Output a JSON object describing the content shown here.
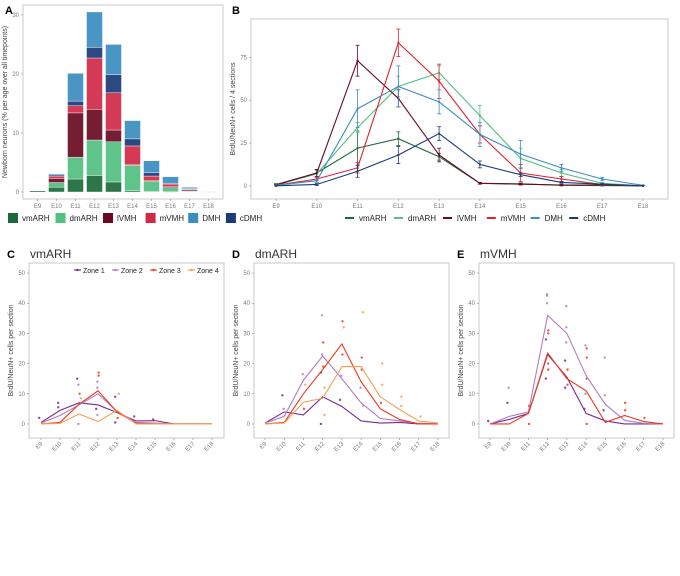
{
  "chart_data": [
    {
      "panel": "A",
      "type": "bar",
      "stacked": true,
      "categories": [
        "E9",
        "E10",
        "E11",
        "E12",
        "E13",
        "E14",
        "E15",
        "E16",
        "E17",
        "E18"
      ],
      "ylabel": "Newborn neurons (% per age over all timepoints)",
      "ylim": [
        0,
        31
      ],
      "yticks": [
        0,
        10,
        20,
        30
      ],
      "grid": false,
      "legend": "bottom",
      "series": [
        {
          "name": "vmARH",
          "color": "#1b6b3a",
          "values": [
            0.2,
            0.8,
            2.2,
            2.8,
            1.7,
            0.2,
            0.1,
            0.05,
            0.1,
            0
          ]
        },
        {
          "name": "dmARH",
          "color": "#52c07f",
          "values": [
            0,
            0.8,
            3.7,
            6.0,
            6.8,
            4.3,
            1.7,
            0.7,
            0.05,
            0
          ]
        },
        {
          "name": "lVMH",
          "color": "#6a0a22",
          "values": [
            0,
            0.7,
            7.5,
            5.2,
            2.0,
            0.1,
            0.1,
            0.2,
            0.2,
            0
          ]
        },
        {
          "name": "mVMH",
          "color": "#d12a47",
          "values": [
            0,
            0.4,
            1.2,
            8.7,
            6.3,
            3.2,
            0.8,
            0.4,
            0.1,
            0
          ]
        },
        {
          "name": "cDMH",
          "color": "#1b3a7a",
          "values": [
            0,
            0.2,
            0.8,
            1.8,
            3.1,
            1.2,
            0.6,
            0.15,
            0.1,
            0
          ]
        },
        {
          "name": "DMH",
          "color": "#3a8dc0",
          "values": [
            0,
            0.2,
            4.7,
            6.0,
            5.1,
            3.1,
            2.0,
            1.1,
            0.25,
            0.05
          ]
        }
      ],
      "legend_order": [
        "vmARH",
        "dmARH",
        "lVMH",
        "mVMH",
        "DMH",
        "cDMH"
      ]
    },
    {
      "panel": "B",
      "type": "line",
      "categories": [
        "E9",
        "E10",
        "E11",
        "E12",
        "E13",
        "E14",
        "E15",
        "E16",
        "E17",
        "E18"
      ],
      "ylabel": "BrdU/NeuN+ cells / 4 sections",
      "ylim": [
        -3,
        95
      ],
      "yticks": [
        0,
        25,
        50,
        75
      ],
      "grid": false,
      "legend": "bottom",
      "error_bars": true,
      "series": [
        {
          "name": "vmARH",
          "color": "#1b6b3a",
          "values": [
            0.8,
            7.5,
            22,
            27.5,
            17,
            1.5,
            1.2,
            0.3,
            0.2,
            0
          ],
          "errors": [
            0.5,
            2,
            10,
            4,
            2,
            0.5,
            0.5,
            0.3,
            0.2,
            0
          ]
        },
        {
          "name": "dmARH",
          "color": "#52c07f",
          "values": [
            0.5,
            7,
            34,
            58,
            66,
            41,
            16,
            7.5,
            1.5,
            0
          ],
          "errors": [
            0.3,
            2,
            3,
            6,
            4,
            6,
            6,
            2,
            0.5,
            0
          ]
        },
        {
          "name": "lVMH",
          "color": "#6a0a22",
          "values": [
            0.5,
            7.5,
            73,
            51,
            18,
            1.5,
            1,
            0.5,
            0.5,
            0
          ],
          "errors": [
            0.3,
            2,
            9,
            5,
            4,
            0.5,
            0.5,
            0.3,
            0.3,
            0
          ]
        },
        {
          "name": "mVMH",
          "color": "#e0202e",
          "values": [
            0.3,
            4,
            10.5,
            83.5,
            61,
            30,
            7.5,
            4,
            0.8,
            0
          ],
          "errors": [
            0.2,
            1,
            3,
            8,
            10,
            5,
            5,
            1.5,
            0.5,
            0
          ]
        },
        {
          "name": "DMH",
          "color": "#3a8dc0",
          "values": [
            0.3,
            3,
            45,
            58,
            49,
            30,
            18.5,
            10.5,
            4,
            0.3
          ],
          "errors": [
            0.2,
            1,
            11,
            12,
            7,
            7,
            8,
            2,
            1,
            0.2
          ]
        },
        {
          "name": "cDMH",
          "color": "#1b3a7a",
          "values": [
            0,
            0.8,
            8.5,
            18,
            30.5,
            12.5,
            6.5,
            2,
            1,
            0
          ],
          "errors": [
            0,
            0.5,
            3.5,
            5,
            4,
            2,
            1,
            0.5,
            0.3,
            0
          ]
        }
      ]
    },
    {
      "panel": "C",
      "title": "vmARH",
      "type": "line",
      "categories": [
        "E9",
        "E10",
        "E11",
        "E12",
        "E13",
        "E14",
        "E15",
        "E16",
        "E17",
        "E18"
      ],
      "ylabel": "BrdU/NeuN+ cells per section",
      "ylim": [
        -2,
        52
      ],
      "yticks": [
        0,
        10,
        20,
        30,
        40,
        50
      ],
      "legend": "top-right",
      "series": [
        {
          "name": "Zone 1",
          "color": "#7a2a8f",
          "values": [
            0.5,
            4.5,
            7,
            6.3,
            3.8,
            1.0,
            1.1,
            0,
            0,
            0
          ]
        },
        {
          "name": "Zone 2",
          "color": "#b07cc6",
          "values": [
            0.3,
            2.8,
            6.3,
            10,
            4.2,
            0.5,
            0.3,
            0,
            0,
            0
          ]
        },
        {
          "name": "Zone 3",
          "color": "#ee3a1a",
          "values": [
            0,
            0.5,
            6.5,
            11,
            4,
            0.2,
            0,
            0,
            0,
            0
          ]
        },
        {
          "name": "Zone 4",
          "color": "#f5a050",
          "values": [
            0,
            0.2,
            3.3,
            0.8,
            4.5,
            0,
            0,
            0,
            0,
            0
          ]
        }
      ],
      "points": [
        [
          0,
          2,
          0
        ],
        [
          1,
          7,
          0
        ],
        [
          1,
          5.5,
          0
        ],
        [
          2,
          15,
          0
        ],
        [
          2,
          13,
          1
        ],
        [
          2,
          10,
          2
        ],
        [
          2,
          8.5,
          3
        ],
        [
          2,
          0,
          1
        ],
        [
          3,
          17,
          2
        ],
        [
          3,
          16,
          2
        ],
        [
          3,
          14,
          1
        ],
        [
          3,
          12,
          1
        ],
        [
          3,
          5,
          0
        ],
        [
          3,
          3,
          1
        ],
        [
          4,
          10,
          3
        ],
        [
          4,
          9,
          0
        ],
        [
          4,
          2,
          2
        ],
        [
          4,
          0.5,
          0
        ],
        [
          5,
          2.5,
          0
        ],
        [
          6,
          1.5,
          0
        ]
      ]
    },
    {
      "panel": "D",
      "title": "dmARH",
      "type": "line",
      "categories": [
        "E9",
        "E10",
        "E11",
        "E12",
        "E13",
        "E14",
        "E15",
        "E16",
        "E17",
        "E18"
      ],
      "ylabel": "BrdU/NeuN+ cells per section",
      "ylim": [
        -2,
        52
      ],
      "yticks": [
        0,
        10,
        20,
        30,
        40,
        50
      ],
      "series": [
        {
          "name": "Zone 1",
          "color": "#7a2a8f",
          "values": [
            0.3,
            4,
            3,
            9,
            5.8,
            1,
            0.3,
            0.5,
            0,
            0
          ]
        },
        {
          "name": "Zone 2",
          "color": "#b07cc6",
          "values": [
            0.3,
            2.5,
            14.5,
            22.5,
            15,
            7,
            1.8,
            1,
            0.2,
            0
          ]
        },
        {
          "name": "Zone 3",
          "color": "#ee3a1a",
          "values": [
            0,
            0.5,
            10,
            18,
            26.5,
            14,
            5,
            1.5,
            0,
            0
          ]
        },
        {
          "name": "Zone 4",
          "color": "#f5a050",
          "values": [
            0,
            0.3,
            7.2,
            8.5,
            19,
            19,
            9,
            4.8,
            1,
            0.3
          ]
        }
      ],
      "points": [
        [
          1,
          9.5,
          0
        ],
        [
          1,
          5,
          1
        ],
        [
          2,
          16.5,
          1
        ],
        [
          2,
          13,
          3
        ],
        [
          2,
          5,
          2
        ],
        [
          3,
          36,
          1
        ],
        [
          3,
          27,
          2
        ],
        [
          3,
          23,
          1
        ],
        [
          3,
          19,
          2
        ],
        [
          3,
          17,
          0
        ],
        [
          3,
          12,
          3
        ],
        [
          3,
          3,
          3
        ],
        [
          3,
          0,
          0
        ],
        [
          4,
          34,
          2
        ],
        [
          4,
          32,
          3
        ],
        [
          4,
          23,
          2
        ],
        [
          4,
          16,
          1
        ],
        [
          4,
          8,
          0
        ],
        [
          5,
          37,
          3
        ],
        [
          5,
          22,
          2
        ],
        [
          5,
          18,
          2
        ],
        [
          5,
          12,
          1
        ],
        [
          5,
          6,
          3
        ],
        [
          6,
          20,
          3
        ],
        [
          6,
          13,
          3
        ],
        [
          6,
          7,
          2
        ],
        [
          7,
          9,
          3
        ],
        [
          7,
          6,
          3
        ],
        [
          8,
          2.5,
          3
        ]
      ]
    },
    {
      "panel": "E",
      "title": "mVMH",
      "type": "line",
      "categories": [
        "E9",
        "E10",
        "E11",
        "E12",
        "E13",
        "E14",
        "E15",
        "E16",
        "E17",
        "E18"
      ],
      "ylabel": "BrdU/NeuN+ cells per section",
      "ylim": [
        -2,
        52
      ],
      "yticks": [
        0,
        10,
        20,
        30,
        40,
        50
      ],
      "series": [
        {
          "name": "Zone 1",
          "color": "#7a2a8f",
          "values": [
            0,
            1.5,
            3.5,
            23,
            15.5,
            3.5,
            1,
            0,
            0,
            0
          ]
        },
        {
          "name": "Zone 2",
          "color": "#b07cc6",
          "values": [
            0,
            2.5,
            4,
            36,
            30,
            16,
            6.5,
            1.2,
            0.2,
            0
          ]
        },
        {
          "name": "Zone 3",
          "color": "#ee3a1a",
          "values": [
            0,
            0,
            3.5,
            23.5,
            15,
            11,
            0.5,
            2.8,
            0.8,
            0
          ]
        }
      ],
      "points": [
        [
          0,
          1,
          0
        ],
        [
          1,
          12,
          1
        ],
        [
          1,
          7,
          0
        ],
        [
          2,
          6,
          2
        ],
        [
          2,
          0,
          2
        ],
        [
          3,
          43,
          1
        ],
        [
          3,
          42.5,
          1
        ],
        [
          3,
          40,
          1
        ],
        [
          3,
          31,
          2
        ],
        [
          3,
          30,
          2
        ],
        [
          3,
          28,
          0
        ],
        [
          3,
          20,
          2
        ],
        [
          3,
          18,
          2
        ],
        [
          3,
          15,
          0
        ],
        [
          4,
          39,
          1
        ],
        [
          4,
          32,
          1
        ],
        [
          4,
          27,
          1
        ],
        [
          4,
          21,
          0
        ],
        [
          4,
          18,
          2
        ],
        [
          4,
          13,
          2
        ],
        [
          4,
          12,
          0
        ],
        [
          5,
          26,
          1
        ],
        [
          5,
          25,
          2
        ],
        [
          5,
          22,
          2
        ],
        [
          5,
          15,
          2
        ],
        [
          5,
          10,
          1
        ],
        [
          5,
          5,
          0
        ],
        [
          5,
          0,
          2
        ],
        [
          6,
          22,
          1
        ],
        [
          6,
          9.5,
          1
        ],
        [
          6,
          4.5,
          0
        ],
        [
          7,
          7,
          2
        ],
        [
          7,
          4.5,
          2
        ],
        [
          8,
          2,
          2
        ]
      ]
    }
  ]
}
